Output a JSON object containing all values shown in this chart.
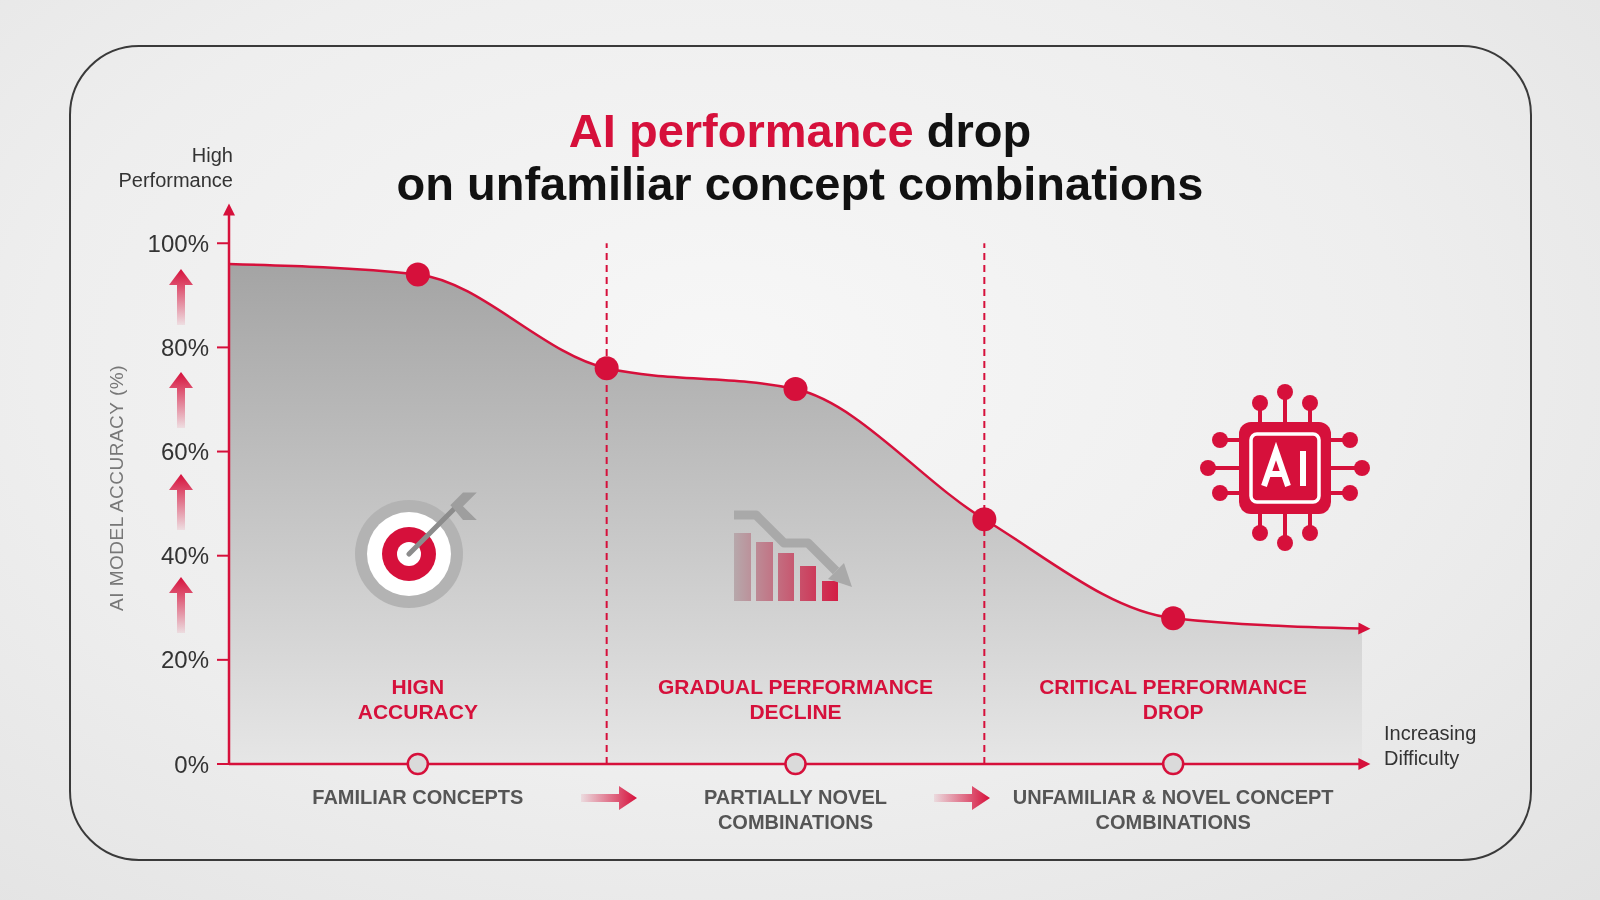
{
  "chart_data": {
    "type": "area",
    "title": "AI performance drop\non unfamiliar concept combinations",
    "xlabel": "Increasing\nDifficulty",
    "ylabel": "AI MODEL ACCURACY (%)",
    "annotations": [
      "High\nPerformance",
      "HIGN\nACCURACY",
      "GRADUAL PERFORMANCE\nDECLINE",
      "CRITICAL PERFORMANCE\nDROP"
    ],
    "categories": [
      null,
      "FAMILIAR CONCEPTS",
      null,
      "PARTIALLY NOVEL\nCOMBINATIONS",
      null,
      "UNFAMILIAR & NOVEL CONCEPT\nCOMBINATIONS",
      null
    ],
    "ylim": [
      0,
      106
    ],
    "yticks": [
      {
        "value": 0,
        "label": "0%"
      },
      {
        "value": 20,
        "label": "20%"
      },
      {
        "value": 40,
        "label": "40%"
      },
      {
        "value": 60,
        "label": "60%"
      },
      {
        "value": 80,
        "label": "80%"
      },
      {
        "value": 100,
        "label": "100%"
      }
    ],
    "series": [
      {
        "color": "#d6103b",
        "values": [
          96,
          94,
          76,
          72,
          47,
          28,
          26
        ]
      },
      {
        "type": "scatter",
        "color": "#d6103b",
        "marker": "circle",
        "values": [
          null,
          94,
          76,
          72,
          47,
          28,
          null
        ]
      }
    ]
  }
}
